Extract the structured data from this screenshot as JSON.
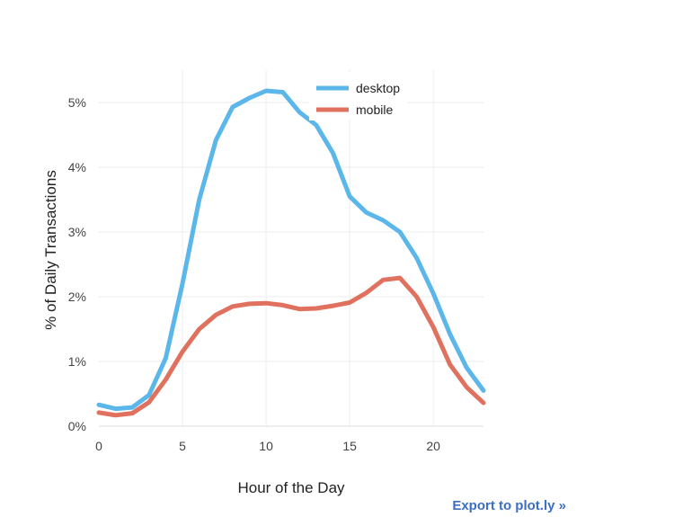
{
  "chart_data": {
    "type": "line",
    "xlabel": "Hour of the Day",
    "ylabel": "% of Daily Transactions",
    "xlim": [
      0,
      23
    ],
    "ylim": [
      0,
      5.5
    ],
    "x_ticks": [
      0,
      5,
      10,
      15,
      20
    ],
    "y_ticks": [
      0,
      1,
      2,
      3,
      4,
      5
    ],
    "y_tick_suffix": "%",
    "grid": true,
    "legend_position": "top-right",
    "x": [
      0,
      1,
      2,
      3,
      4,
      5,
      6,
      7,
      8,
      9,
      10,
      11,
      12,
      13,
      14,
      15,
      16,
      17,
      18,
      19,
      20,
      21,
      22,
      23
    ],
    "series": [
      {
        "name": "desktop",
        "color": "#5bb7ea",
        "values": [
          0.33,
          0.27,
          0.29,
          0.48,
          1.05,
          2.2,
          3.5,
          4.42,
          4.93,
          5.07,
          5.18,
          5.16,
          4.85,
          4.65,
          4.22,
          3.55,
          3.3,
          3.18,
          3.0,
          2.6,
          2.05,
          1.42,
          0.9,
          0.55
        ]
      },
      {
        "name": "mobile",
        "color": "#e0715e",
        "values": [
          0.21,
          0.17,
          0.2,
          0.37,
          0.72,
          1.15,
          1.5,
          1.72,
          1.85,
          1.89,
          1.9,
          1.87,
          1.81,
          1.82,
          1.86,
          1.91,
          2.06,
          2.26,
          2.29,
          2.0,
          1.53,
          0.95,
          0.6,
          0.36
        ]
      }
    ]
  },
  "export_link": "Export to plot.ly »"
}
